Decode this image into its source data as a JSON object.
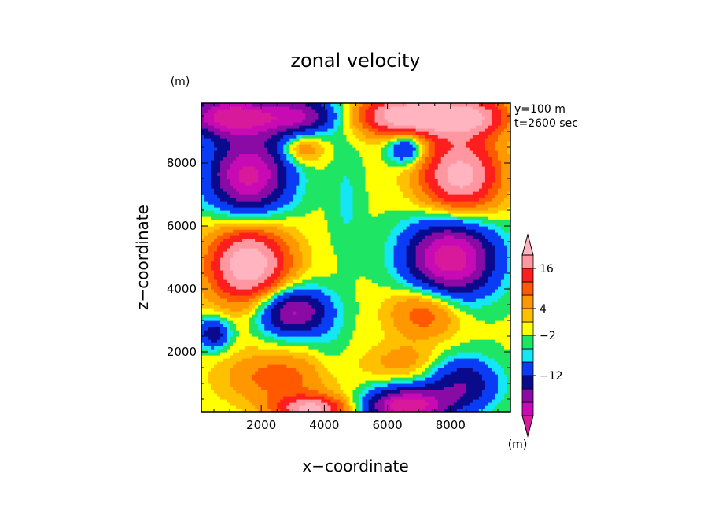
{
  "chart_data": {
    "type": "heatmap",
    "title": "zonal velocity",
    "xlabel": "x−coordinate",
    "ylabel": "z−coordinate",
    "y_unit": "(m)",
    "annotations": [
      "y=100 m",
      "t=2600 sec"
    ],
    "xlim": [
      100,
      9900
    ],
    "ylim": [
      100,
      9900
    ],
    "x_ticks": [
      2000,
      4000,
      6000,
      8000
    ],
    "y_ticks": [
      2000,
      4000,
      6000,
      8000
    ],
    "colorbar": {
      "unit": "(m)",
      "labels": [
        {
          "level": 11,
          "text": "16"
        },
        {
          "level": 8,
          "text": "4"
        },
        {
          "level": 6,
          "text": "−2"
        },
        {
          "level": 3,
          "text": "−12"
        }
      ],
      "colors": [
        "#d8199c",
        "#c80ab4",
        "#8a0aa6",
        "#0a0a8c",
        "#0a3cf5",
        "#14e6f5",
        "#1ee664",
        "#ffff00",
        "#ffc000",
        "#ff9800",
        "#ff5a00",
        "#ff1e1e",
        "#ff96a0",
        "#ffb4c0"
      ]
    },
    "field_features": [
      {
        "x": 1000,
        "z": 9500,
        "amp": -22,
        "sx": 1000,
        "sz": 450
      },
      {
        "x": 3200,
        "z": 9500,
        "amp": -16,
        "sx": 900,
        "sz": 450
      },
      {
        "x": 6600,
        "z": 9500,
        "amp": 22,
        "sx": 1100,
        "sz": 450
      },
      {
        "x": 8600,
        "z": 9500,
        "amp": 16,
        "sx": 900,
        "sz": 450
      },
      {
        "x": 1600,
        "z": 7600,
        "amp": -22,
        "sx": 900,
        "sz": 900
      },
      {
        "x": 8300,
        "z": 7600,
        "amp": 20,
        "sx": 900,
        "sz": 900
      },
      {
        "x": 3300,
        "z": 8500,
        "amp": 8,
        "sx": 450,
        "sz": 350
      },
      {
        "x": 6600,
        "z": 8500,
        "amp": -12,
        "sx": 400,
        "sz": 350
      },
      {
        "x": 1600,
        "z": 4800,
        "amp": 22,
        "sx": 900,
        "sz": 900
      },
      {
        "x": 8000,
        "z": 5000,
        "amp": -24,
        "sx": 1000,
        "sz": 900
      },
      {
        "x": 3000,
        "z": 3300,
        "amp": -18,
        "sx": 800,
        "sz": 550
      },
      {
        "x": 7200,
        "z": 3300,
        "amp": 10,
        "sx": 800,
        "sz": 600
      },
      {
        "x": 500,
        "z": 2600,
        "amp": -12,
        "sx": 350,
        "sz": 350
      },
      {
        "x": 2500,
        "z": 1200,
        "amp": 8,
        "sx": 1200,
        "sz": 600
      },
      {
        "x": 3600,
        "z": 200,
        "amp": 18,
        "sx": 800,
        "sz": 300
      },
      {
        "x": 6600,
        "z": 300,
        "amp": -24,
        "sx": 900,
        "sz": 400
      },
      {
        "x": 8400,
        "z": 1000,
        "amp": -12,
        "sx": 800,
        "sz": 600
      },
      {
        "x": 6500,
        "z": 1700,
        "amp": 5,
        "sx": 800,
        "sz": 400
      },
      {
        "x": 4700,
        "z": 6800,
        "amp": -3,
        "sx": 350,
        "sz": 1200
      },
      {
        "x": 4200,
        "z": 2000,
        "amp": -2,
        "sx": 400,
        "sz": 700
      }
    ]
  }
}
